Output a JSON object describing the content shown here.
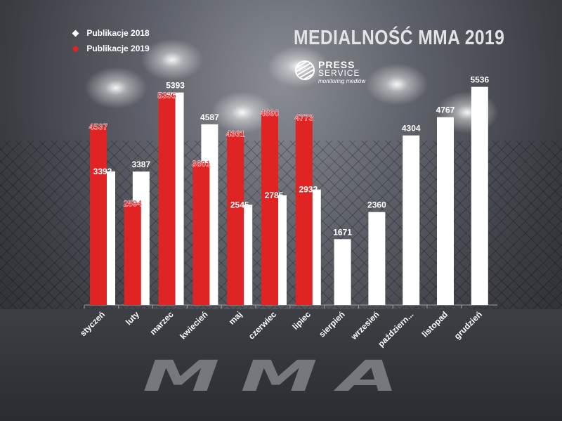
{
  "brand": {
    "line1": "PRESS",
    "line2": "SERVICE",
    "tagline": "monitoring mediów"
  },
  "decor": {
    "floor_text": "MMA"
  },
  "chart_data": {
    "type": "bar",
    "title": "MEDIALNOŚĆ MMA 2019",
    "xlabel": "",
    "ylabel": "",
    "ylim": [
      0,
      5600
    ],
    "grid": false,
    "legend_position": "top-left",
    "categories": [
      "styczeń",
      "luty",
      "marzec",
      "kwiecień",
      "maj",
      "czerwiec",
      "lipiec",
      "sierpień",
      "wrzesień",
      "październik",
      "listopad",
      "grudzień"
    ],
    "category_labels": [
      "styczeń",
      "luty",
      "marzec",
      "kwiecień",
      "maj",
      "czerwiec",
      "lipiec",
      "sierpień",
      "wrzesień",
      "październ...",
      "listopad",
      "grudzień"
    ],
    "series": [
      {
        "name": "Publikacje 2018",
        "color": "#ffffff",
        "label_color": "#ffffff",
        "values": [
          3392,
          3387,
          5393,
          4587,
          2545,
          2785,
          2932,
          1671,
          2360,
          4304,
          4767,
          5536
        ]
      },
      {
        "name": "Publikacje 2019",
        "color": "#e02424",
        "label_color": "#e02424",
        "values": [
          4537,
          2594,
          5336,
          3601,
          4361,
          4890,
          4773,
          null,
          null,
          null,
          null,
          null
        ]
      }
    ]
  }
}
